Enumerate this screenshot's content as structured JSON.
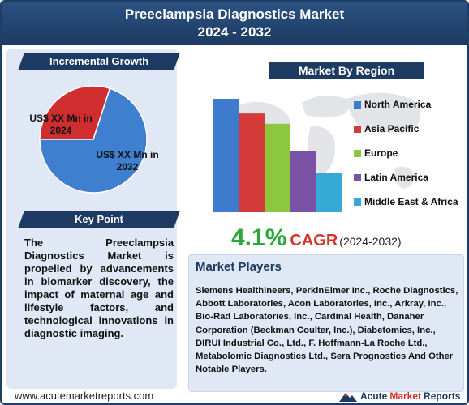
{
  "header": {
    "title_line1": "Preeclampsia Diagnostics Market",
    "title_line2": "2024 - 2032"
  },
  "incremental_growth": {
    "heading": "Incremental Growth",
    "label_2024": "US$ XX Mn in 2024",
    "label_2032": "US$ XX Mn in 2032"
  },
  "key_point": {
    "heading": "Key Point",
    "text": "The Preeclampsia Diagnostics Market is propelled by advancements in biomarker discovery, the impact of maternal age and lifestyle factors, and technological innovations in diagnostic imaging."
  },
  "market_by_region": {
    "heading": "Market By Region"
  },
  "chart_data": [
    {
      "type": "pie",
      "title": "",
      "categories": [
        "US$ XX Mn in 2024",
        "US$ XX Mn in 2032"
      ],
      "values": [
        30,
        70
      ],
      "colors": [
        "#d02e2e",
        "#3f7fcf"
      ]
    },
    {
      "type": "bar",
      "title": "",
      "categories": [
        "North America",
        "Asia Pacific",
        "Europe",
        "Latin America",
        "Middle East & Africa"
      ],
      "values": [
        100,
        87,
        78,
        54,
        35
      ],
      "colors": [
        "#3d7bcf",
        "#d33b38",
        "#8dc63f",
        "#7a52a5",
        "#36a9d6"
      ],
      "ylim": [
        0,
        100
      ],
      "legend": "right"
    }
  ],
  "cagr": {
    "value": "4.1%",
    "label": "CAGR",
    "period": "(2024-2032)"
  },
  "market_players": {
    "heading": "Market Players",
    "text": "Siemens Healthineers, PerkinElmer Inc., Roche Diagnostics, Abbott Laboratories, Acon Laboratories, Inc., Arkray, Inc., Bio-Rad Laboratories, Inc., Cardinal Health, Danaher Corporation (Beckman Coulter, Inc.), Diabetomics, Inc., DIRUI Industrial Co., Ltd., F. Hoffmann-La Roche Ltd., Metabolomic Diagnostics Ltd., Sera Prognostics And Other Notable Players."
  },
  "footer": {
    "url": "www.acutemarketreports.com",
    "logo_acute": "Acute",
    "logo_market": "Market",
    "logo_reports": "Reports"
  }
}
